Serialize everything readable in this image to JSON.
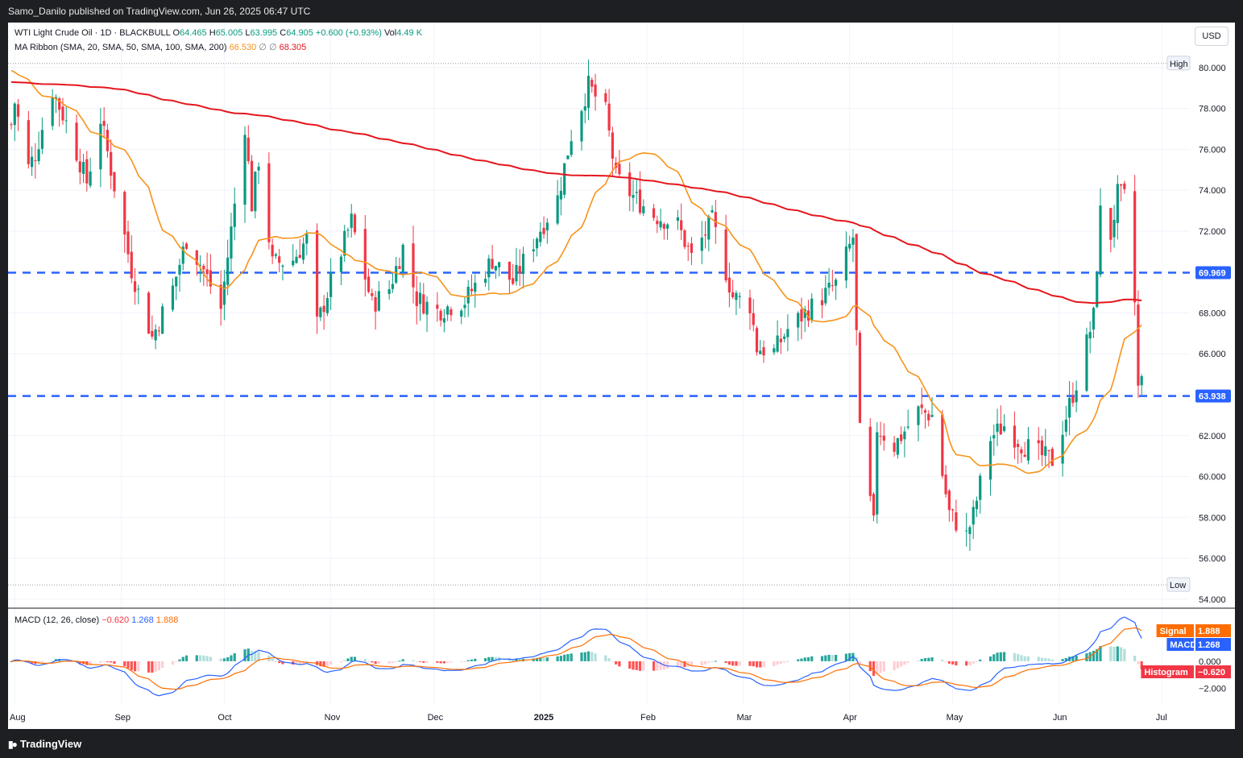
{
  "header": {
    "published": "Samo_Danilo published on TradingView.com, Jun 26, 2025 06:47 UTC"
  },
  "footer": {
    "brand": "TradingView"
  },
  "symbol": {
    "name": "WTI Light Crude Oil · 1D · BLACKBULL",
    "o_label": "O",
    "o": "64.465",
    "h_label": "H",
    "h": "65.005",
    "l_label": "L",
    "l": "63.995",
    "c_label": "C",
    "c": "64.905",
    "change": "+0.600 (+0.93%)",
    "vol_label": "Vol",
    "vol": "4.49 K"
  },
  "ma_ribbon": {
    "label": "MA Ribbon (SMA, 20, SMA, 50, SMA, 100, SMA, 200)",
    "v1": "66.530",
    "v2": "68.305",
    "empty": "∅"
  },
  "currency": "USD",
  "colors": {
    "up": "#089981",
    "down": "#f23645",
    "ma20": "#f7931a",
    "ma200": "#e5161d",
    "level": "#2962ff",
    "macd": "#2962ff",
    "signal": "#ff6d00"
  },
  "chart_data": [
    {
      "type": "candlestick",
      "title": "WTI Light Crude Oil · 1D · BLACKBULL",
      "x_ticks": [
        "Aug",
        "Sep",
        "Oct",
        "Nov",
        "Dec",
        "2025",
        "Feb",
        "Mar",
        "Apr",
        "May",
        "Jun",
        "Jul"
      ],
      "y_ticks": [
        "54.000",
        "56.000",
        "58.000",
        "60.000",
        "62.000",
        "64.000",
        "66.000",
        "68.000",
        "70.000",
        "72.000",
        "74.000",
        "76.000",
        "78.000",
        "80.000"
      ],
      "ylim": [
        53.6,
        82.2
      ],
      "high_label": "High",
      "high": 80.2,
      "low_label": "Low",
      "low": 54.7,
      "levels": [
        {
          "value": 69.969,
          "label": "69.969"
        },
        {
          "value": 63.938,
          "label": "63.938"
        }
      ],
      "anchors": [
        {
          "date": "2024-07-31",
          "close": 77.2
        },
        {
          "date": "2024-08-01",
          "close": 78.3
        },
        {
          "date": "2024-08-05",
          "close": 75.1
        },
        {
          "date": "2024-08-07",
          "close": 75.8
        },
        {
          "date": "2024-08-12",
          "close": 78.9
        },
        {
          "date": "2024-08-16",
          "close": 77.3
        },
        {
          "date": "2024-08-22",
          "close": 74.4
        },
        {
          "date": "2024-08-26",
          "close": 77.5
        },
        {
          "date": "2024-08-30",
          "close": 74.2
        },
        {
          "date": "2024-09-04",
          "close": 70.1
        },
        {
          "date": "2024-09-10",
          "close": 66.8
        },
        {
          "date": "2024-09-16",
          "close": 69.2
        },
        {
          "date": "2024-09-20",
          "close": 71.6
        },
        {
          "date": "2024-09-25",
          "close": 70.1
        },
        {
          "date": "2024-09-30",
          "close": 68.2
        },
        {
          "date": "2024-10-07",
          "close": 77.2
        },
        {
          "date": "2024-10-09",
          "close": 73.3
        },
        {
          "date": "2024-10-11",
          "close": 75.5
        },
        {
          "date": "2024-10-15",
          "close": 70.4
        },
        {
          "date": "2024-10-21",
          "close": 70.6
        },
        {
          "date": "2024-10-25",
          "close": 71.6
        },
        {
          "date": "2024-10-28",
          "close": 67.4
        },
        {
          "date": "2024-11-01",
          "close": 69.5
        },
        {
          "date": "2024-11-07",
          "close": 72.5
        },
        {
          "date": "2024-11-13",
          "close": 68.4
        },
        {
          "date": "2024-11-18",
          "close": 69.2
        },
        {
          "date": "2024-11-22",
          "close": 71.2
        },
        {
          "date": "2024-11-26",
          "close": 68.7
        },
        {
          "date": "2024-12-02",
          "close": 68.1
        },
        {
          "date": "2024-12-10",
          "close": 68.6
        },
        {
          "date": "2024-12-18",
          "close": 70.6
        },
        {
          "date": "2024-12-24",
          "close": 69.5
        },
        {
          "date": "2024-12-31",
          "close": 71.8
        },
        {
          "date": "2025-01-06",
          "close": 73.6
        },
        {
          "date": "2025-01-10",
          "close": 76.7
        },
        {
          "date": "2025-01-15",
          "close": 79.1
        },
        {
          "date": "2025-01-20",
          "close": 77.8
        },
        {
          "date": "2025-01-23",
          "close": 74.6
        },
        {
          "date": "2025-01-28",
          "close": 73.7
        },
        {
          "date": "2025-02-03",
          "close": 72.8
        },
        {
          "date": "2025-02-10",
          "close": 72.3
        },
        {
          "date": "2025-02-14",
          "close": 70.7
        },
        {
          "date": "2025-02-20",
          "close": 72.5
        },
        {
          "date": "2025-02-26",
          "close": 68.8
        },
        {
          "date": "2025-03-03",
          "close": 68.4
        },
        {
          "date": "2025-03-05",
          "close": 66.3
        },
        {
          "date": "2025-03-10",
          "close": 66.1
        },
        {
          "date": "2025-03-14",
          "close": 67.2
        },
        {
          "date": "2025-03-21",
          "close": 68.3
        },
        {
          "date": "2025-03-28",
          "close": 69.4
        },
        {
          "date": "2025-04-02",
          "close": 71.7
        },
        {
          "date": "2025-04-03",
          "close": 66.9
        },
        {
          "date": "2025-04-04",
          "close": 62.1
        },
        {
          "date": "2025-04-08",
          "close": 57.6
        },
        {
          "date": "2025-04-09",
          "close": 62.4
        },
        {
          "date": "2025-04-14",
          "close": 61.5
        },
        {
          "date": "2025-04-21",
          "close": 63.2
        },
        {
          "date": "2025-04-25",
          "close": 63.0
        },
        {
          "date": "2025-04-30",
          "close": 58.2
        },
        {
          "date": "2025-05-05",
          "close": 57.1
        },
        {
          "date": "2025-05-07",
          "close": 58.1
        },
        {
          "date": "2025-05-12",
          "close": 61.9
        },
        {
          "date": "2025-05-16",
          "close": 62.5
        },
        {
          "date": "2025-05-21",
          "close": 61.6
        },
        {
          "date": "2025-05-27",
          "close": 61.0
        },
        {
          "date": "2025-05-30",
          "close": 60.8
        },
        {
          "date": "2025-06-02",
          "close": 62.4
        },
        {
          "date": "2025-06-06",
          "close": 64.6
        },
        {
          "date": "2025-06-11",
          "close": 67.8
        },
        {
          "date": "2025-06-13",
          "close": 72.9
        },
        {
          "date": "2025-06-16",
          "close": 71.8
        },
        {
          "date": "2025-06-18",
          "close": 73.8
        },
        {
          "date": "2025-06-20",
          "close": 73.6
        },
        {
          "date": "2025-06-22",
          "close": 75.3
        },
        {
          "date": "2025-06-23",
          "close": 68.5
        },
        {
          "date": "2025-06-24",
          "close": 64.3
        },
        {
          "date": "2025-06-25",
          "close": 64.905
        }
      ],
      "last_bar": {
        "open": 64.465,
        "high": 65.005,
        "low": 63.995,
        "close": 64.905
      }
    },
    {
      "type": "macd",
      "title": "MACD (12, 26, close)",
      "values": {
        "histogram": "−0.620",
        "macd": "1.268",
        "signal": "1.888"
      },
      "labels": {
        "signal": "Signal",
        "macd": "MACD",
        "histogram": "Histogram"
      },
      "y_ticks": [
        "2.000",
        "0.000",
        "−2.000"
      ],
      "ylim": [
        -3.2,
        3.6
      ]
    }
  ]
}
